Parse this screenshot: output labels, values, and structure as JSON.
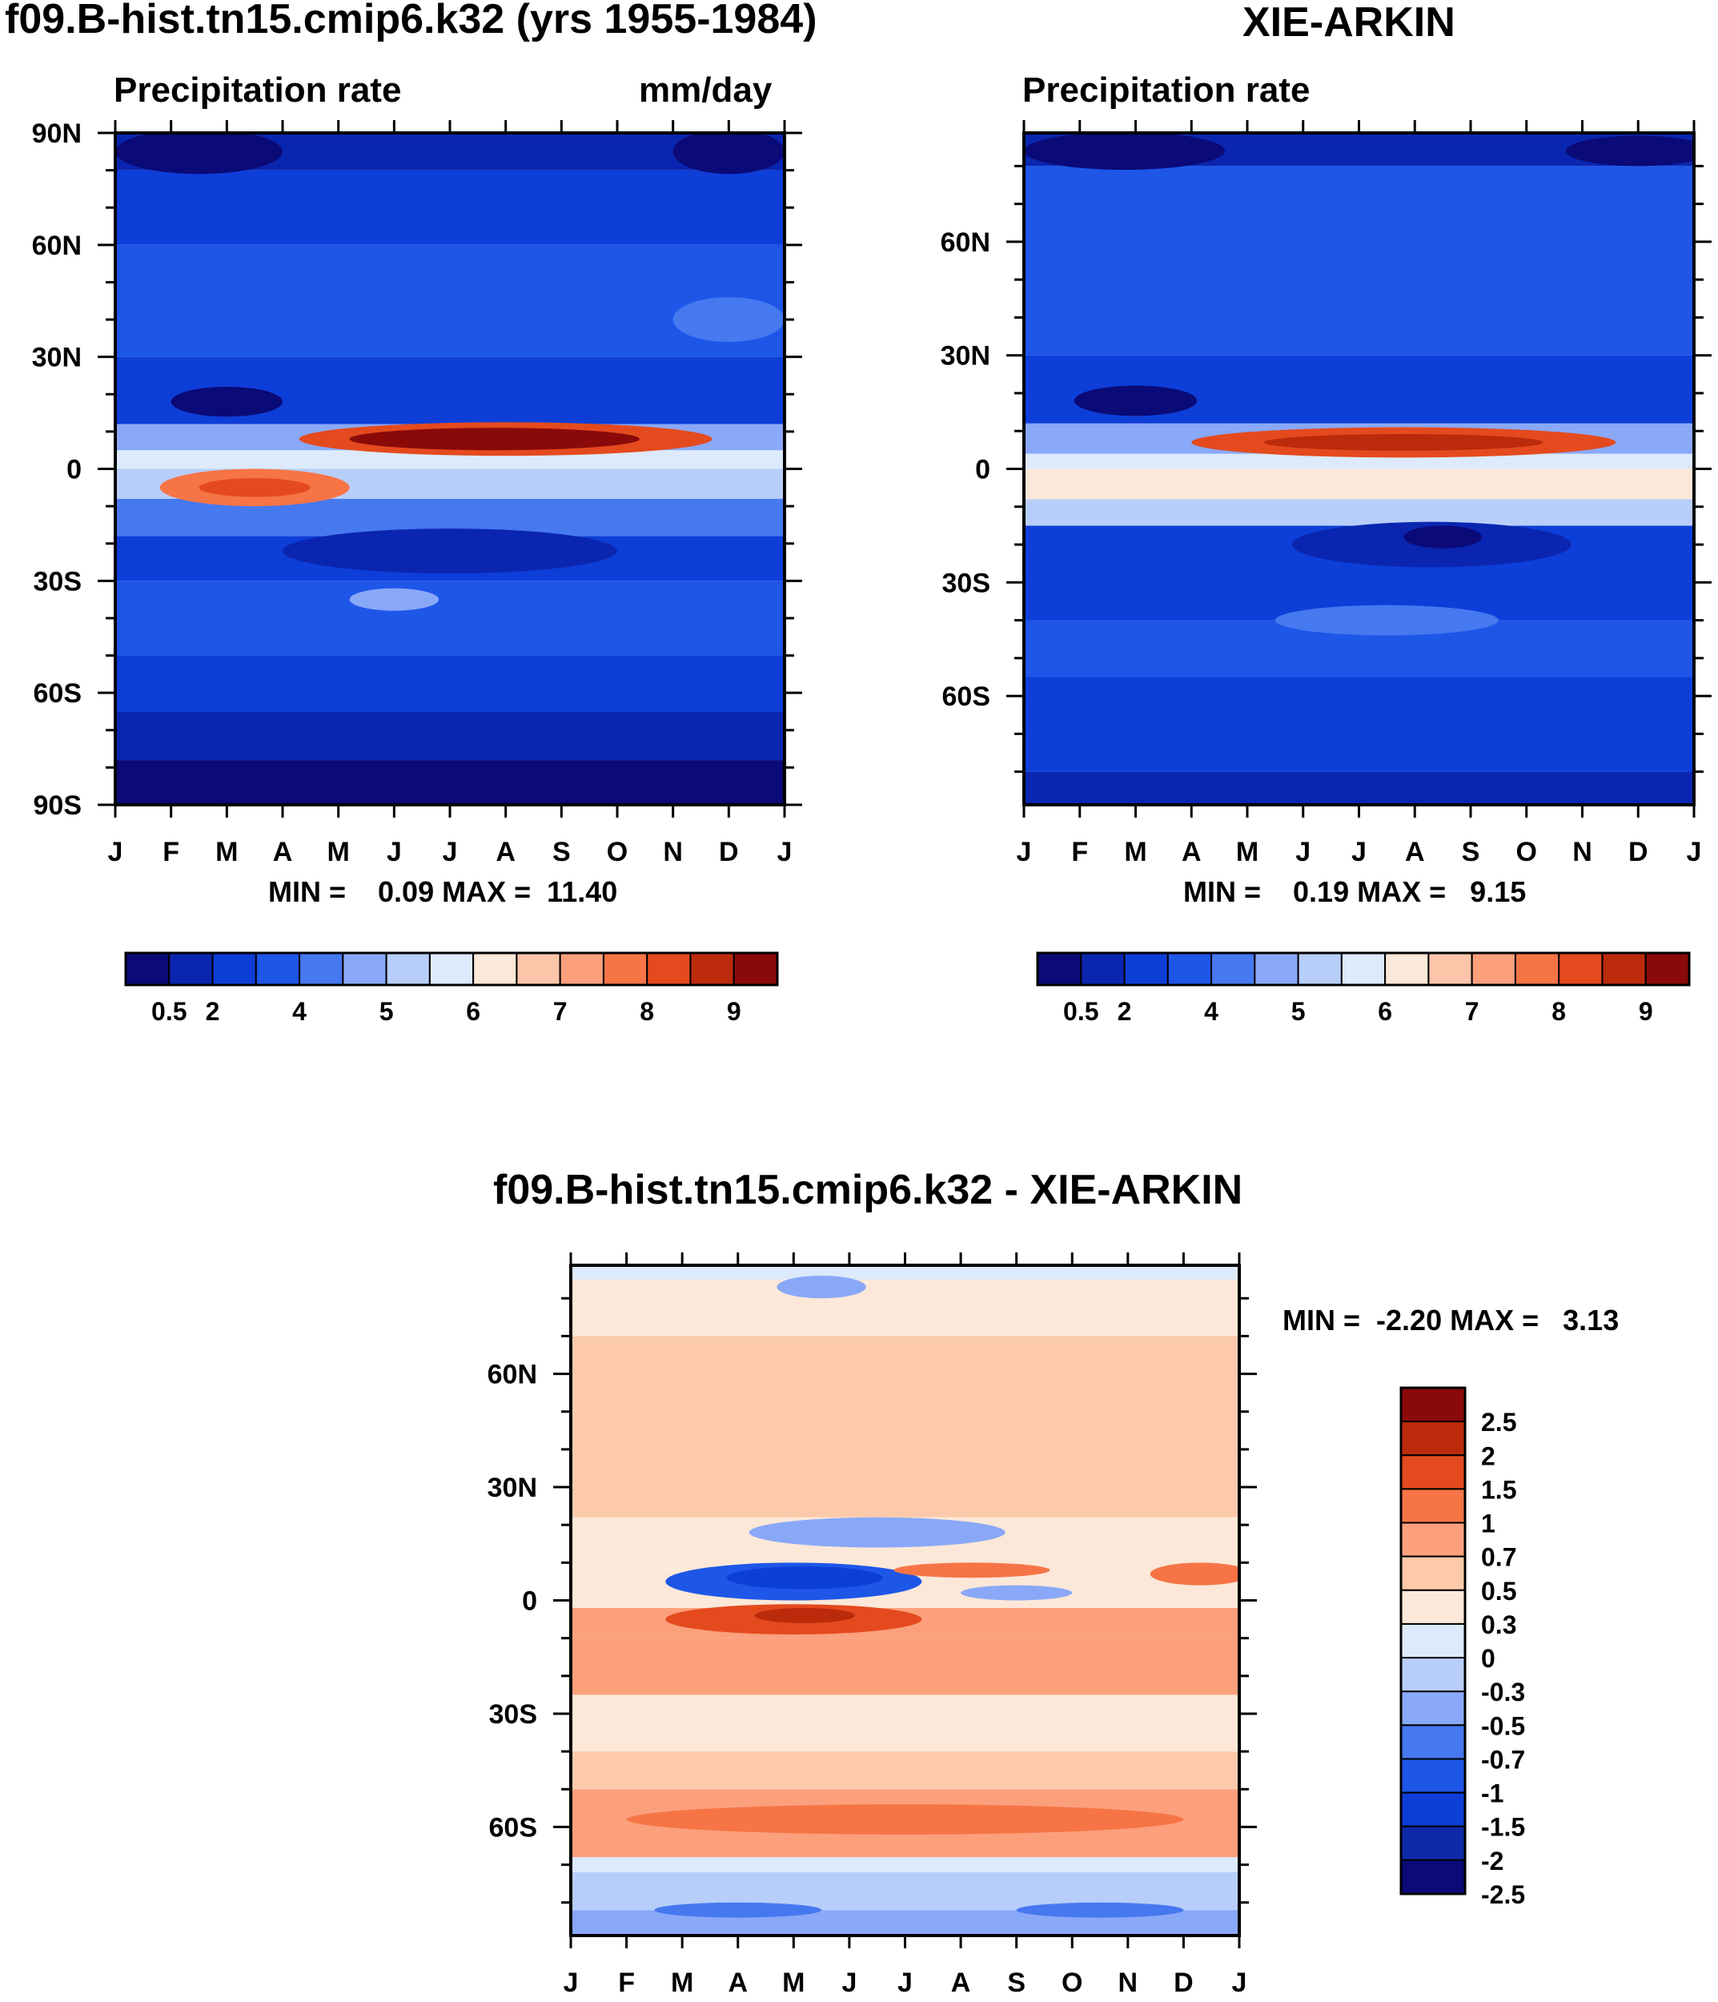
{
  "chart_data": [
    {
      "type": "heatmap",
      "title": "f09.B-hist.tn15.cmip6.k32 (yrs 1955-1984)",
      "subtitle_left": "Precipitation rate",
      "subtitle_right": "mm/day",
      "x_tick_labels": [
        "J",
        "F",
        "M",
        "A",
        "M",
        "J",
        "J",
        "A",
        "S",
        "O",
        "N",
        "D",
        "J"
      ],
      "y_tick_labels": [
        "90N",
        "60N",
        "30N",
        "0",
        "30S",
        "60S",
        "90S"
      ],
      "ylim": [
        -90,
        90
      ],
      "stats": {
        "min_label": "MIN =",
        "min": "0.09",
        "max_label": "MAX =",
        "max": "11.40"
      },
      "colorbar_labels": [
        "0.5",
        "2",
        "4",
        "5",
        "6",
        "7",
        "8",
        "9"
      ],
      "bands": [
        {
          "lat": [
            -90,
            -78
          ],
          "level": 0
        },
        {
          "lat": [
            -78,
            -65
          ],
          "level": 1
        },
        {
          "lat": [
            -65,
            -50
          ],
          "level": 2
        },
        {
          "lat": [
            -50,
            -30
          ],
          "level": 3
        },
        {
          "lat": [
            -30,
            -18
          ],
          "level": 2
        },
        {
          "lat": [
            -18,
            -8
          ],
          "level": 4
        },
        {
          "lat": [
            -8,
            0
          ],
          "level": 6
        },
        {
          "lat": [
            0,
            5
          ],
          "level": 7
        },
        {
          "lat": [
            5,
            12
          ],
          "level": 5
        },
        {
          "lat": [
            12,
            30
          ],
          "level": 2
        },
        {
          "lat": [
            30,
            60
          ],
          "level": 3
        },
        {
          "lat": [
            60,
            80
          ],
          "level": 2
        },
        {
          "lat": [
            80,
            90
          ],
          "level": 1
        }
      ],
      "features": [
        {
          "cx": 2.5,
          "cy": -5,
          "rx": 1.7,
          "ry": 5,
          "level": 11
        },
        {
          "cx": 2.5,
          "cy": -5,
          "rx": 1.0,
          "ry": 2.5,
          "level": 12
        },
        {
          "cx": 7.0,
          "cy": 8,
          "rx": 3.7,
          "ry": 4.5,
          "level": 12
        },
        {
          "cx": 6.8,
          "cy": 8,
          "rx": 2.6,
          "ry": 3,
          "level": 14
        },
        {
          "cx": 5.0,
          "cy": -35,
          "rx": 0.8,
          "ry": 3,
          "level": 5
        },
        {
          "cx": 6.0,
          "cy": -22,
          "rx": 3.0,
          "ry": 6,
          "level": 1
        },
        {
          "cx": 2.0,
          "cy": 18,
          "rx": 1.0,
          "ry": 4,
          "level": 0
        },
        {
          "cx": 1.5,
          "cy": 85,
          "rx": 1.5,
          "ry": 6,
          "level": 0
        },
        {
          "cx": 11.0,
          "cy": 85,
          "rx": 1.0,
          "ry": 6,
          "level": 0
        },
        {
          "cx": 11.0,
          "cy": 40,
          "rx": 1.0,
          "ry": 6,
          "level": 4
        }
      ]
    },
    {
      "type": "heatmap",
      "title": "XIE-ARKIN",
      "subtitle_left": "Precipitation rate",
      "subtitle_right": "",
      "x_tick_labels": [
        "J",
        "F",
        "M",
        "A",
        "M",
        "J",
        "J",
        "A",
        "S",
        "O",
        "N",
        "D",
        "J"
      ],
      "y_tick_labels": [
        "60N",
        "30N",
        "0",
        "30S",
        "60S"
      ],
      "ylim": [
        -88.75,
        88.75
      ],
      "stats": {
        "min_label": "MIN =",
        "min": "0.19",
        "max_label": "MAX =",
        "max": "9.15"
      },
      "colorbar_labels": [
        "0.5",
        "2",
        "4",
        "5",
        "6",
        "7",
        "8",
        "9"
      ],
      "bands": [
        {
          "lat": [
            -88.75,
            -80
          ],
          "level": 1
        },
        {
          "lat": [
            -80,
            -55
          ],
          "level": 2
        },
        {
          "lat": [
            -55,
            -40
          ],
          "level": 3
        },
        {
          "lat": [
            -40,
            -15
          ],
          "level": 2
        },
        {
          "lat": [
            -15,
            -8
          ],
          "level": 6
        },
        {
          "lat": [
            -8,
            0
          ],
          "level": 8
        },
        {
          "lat": [
            0,
            4
          ],
          "level": 7
        },
        {
          "lat": [
            4,
            12
          ],
          "level": 5
        },
        {
          "lat": [
            12,
            30
          ],
          "level": 2
        },
        {
          "lat": [
            30,
            80
          ],
          "level": 3
        },
        {
          "lat": [
            80,
            88.75
          ],
          "level": 1
        }
      ],
      "features": [
        {
          "cx": 6.8,
          "cy": 7,
          "rx": 3.8,
          "ry": 4,
          "level": 12
        },
        {
          "cx": 6.8,
          "cy": 7,
          "rx": 2.5,
          "ry": 2.2,
          "level": 13
        },
        {
          "cx": 7.3,
          "cy": -20,
          "rx": 2.5,
          "ry": 6,
          "level": 1
        },
        {
          "cx": 7.5,
          "cy": -18,
          "rx": 0.7,
          "ry": 3,
          "level": 0
        },
        {
          "cx": 2.0,
          "cy": 18,
          "rx": 1.1,
          "ry": 4,
          "level": 0
        },
        {
          "cx": 1.8,
          "cy": 84,
          "rx": 1.8,
          "ry": 5,
          "level": 0
        },
        {
          "cx": 11.0,
          "cy": 84,
          "rx": 1.3,
          "ry": 4,
          "level": 0
        },
        {
          "cx": 6.5,
          "cy": -40,
          "rx": 2.0,
          "ry": 4,
          "level": 4
        }
      ]
    },
    {
      "type": "heatmap",
      "title": "f09.B-hist.tn15.cmip6.k32 - XIE-ARKIN",
      "x_tick_labels": [
        "J",
        "F",
        "M",
        "A",
        "M",
        "J",
        "J",
        "A",
        "S",
        "O",
        "N",
        "D",
        "J"
      ],
      "y_tick_labels": [
        "60N",
        "30N",
        "0",
        "30S",
        "60S"
      ],
      "ylim": [
        -88.75,
        88.75
      ],
      "stats": {
        "min_label": "MIN =",
        "min": "-2.20",
        "max_label": "MAX =",
        "max": "3.13"
      },
      "colorbar_labels": [
        "2.5",
        "2",
        "1.5",
        "1",
        "0.7",
        "0.5",
        "0.3",
        "0",
        "-0.3",
        "-0.5",
        "-0.7",
        "-1",
        "-1.5",
        "-2",
        "-2.5"
      ],
      "bands": [
        {
          "lat": [
            -88.75,
            -82
          ],
          "level": 5
        },
        {
          "lat": [
            -82,
            -72
          ],
          "level": 6
        },
        {
          "lat": [
            -72,
            -68
          ],
          "level": 7
        },
        {
          "lat": [
            -68,
            -50
          ],
          "level": 10
        },
        {
          "lat": [
            -50,
            -40
          ],
          "level": 9
        },
        {
          "lat": [
            -40,
            -25
          ],
          "level": 8
        },
        {
          "lat": [
            -25,
            -10
          ],
          "level": 10
        },
        {
          "lat": [
            -10,
            -2
          ],
          "level": 10
        },
        {
          "lat": [
            -2,
            8
          ],
          "level": 8
        },
        {
          "lat": [
            8,
            22
          ],
          "level": 8
        },
        {
          "lat": [
            22,
            50
          ],
          "level": 9
        },
        {
          "lat": [
            50,
            70
          ],
          "level": 9
        },
        {
          "lat": [
            70,
            85
          ],
          "level": 8
        },
        {
          "lat": [
            85,
            88.75
          ],
          "level": 7
        }
      ],
      "features": [
        {
          "cx": 4.0,
          "cy": 5,
          "rx": 2.3,
          "ry": 5,
          "level": 3
        },
        {
          "cx": 4.2,
          "cy": 6,
          "rx": 1.4,
          "ry": 3,
          "level": 2
        },
        {
          "cx": 5.5,
          "cy": 18,
          "rx": 2.3,
          "ry": 4,
          "level": 5
        },
        {
          "cx": 4.0,
          "cy": -5,
          "rx": 2.3,
          "ry": 4,
          "level": 12
        },
        {
          "cx": 4.2,
          "cy": -4,
          "rx": 0.9,
          "ry": 2,
          "level": 13
        },
        {
          "cx": 7.2,
          "cy": 8,
          "rx": 1.4,
          "ry": 2,
          "level": 11
        },
        {
          "cx": 8.0,
          "cy": 2,
          "rx": 1.0,
          "ry": 2,
          "level": 5
        },
        {
          "cx": 11.3,
          "cy": 7,
          "rx": 0.9,
          "ry": 3,
          "level": 11
        },
        {
          "cx": 4.5,
          "cy": 83,
          "rx": 0.8,
          "ry": 3,
          "level": 5
        },
        {
          "cx": 6.0,
          "cy": -58,
          "rx": 5.0,
          "ry": 4,
          "level": 11
        },
        {
          "cx": 3.0,
          "cy": -82,
          "rx": 1.5,
          "ry": 2,
          "level": 4
        },
        {
          "cx": 9.5,
          "cy": -82,
          "rx": 1.5,
          "ry": 2,
          "level": 4
        }
      ]
    }
  ]
}
